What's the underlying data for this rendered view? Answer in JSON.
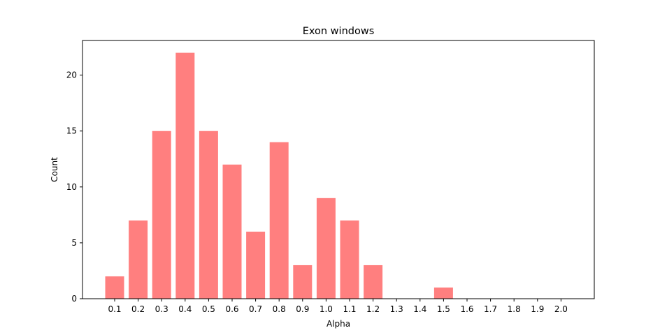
{
  "chart_data": {
    "type": "bar",
    "title": "Exon windows",
    "xlabel": "Alpha",
    "ylabel": "Count",
    "categories": [
      "0.1",
      "0.2",
      "0.3",
      "0.4",
      "0.5",
      "0.6",
      "0.7",
      "0.8",
      "0.9",
      "1.0",
      "1.1",
      "1.2",
      "1.3",
      "1.4",
      "1.5",
      "1.6",
      "1.7",
      "1.8",
      "1.9",
      "2.0"
    ],
    "values": [
      2,
      7,
      15,
      22,
      15,
      12,
      6,
      14,
      3,
      9,
      7,
      3,
      0,
      0,
      1,
      0,
      0,
      0,
      0,
      0
    ],
    "ylim": [
      0,
      23.1
    ],
    "yticks": [
      0,
      5,
      10,
      15,
      20
    ],
    "ytick_labels": [
      "0",
      "5",
      "10",
      "15",
      "20"
    ],
    "bar_color": "#ff7f7f",
    "grid": false,
    "legend": false
  }
}
